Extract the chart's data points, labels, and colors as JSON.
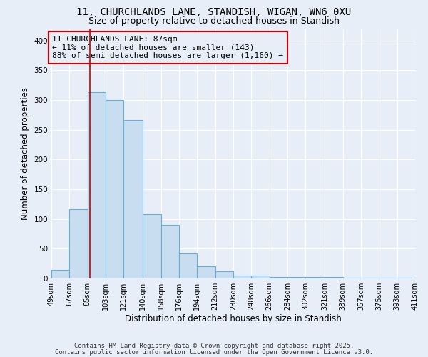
{
  "title1": "11, CHURCHLANDS LANE, STANDISH, WIGAN, WN6 0XU",
  "title2": "Size of property relative to detached houses in Standish",
  "xlabel": "Distribution of detached houses by size in Standish",
  "ylabel": "Number of detached properties",
  "bin_edges": [
    49,
    67,
    85,
    103,
    121,
    140,
    158,
    176,
    194,
    212,
    230,
    248,
    266,
    284,
    302,
    321,
    339,
    357,
    375,
    393,
    411
  ],
  "bar_heights": [
    15,
    117,
    313,
    300,
    267,
    108,
    90,
    42,
    20,
    12,
    5,
    5,
    3,
    2,
    2,
    2,
    1,
    1,
    1,
    1
  ],
  "bar_color": "#c8ddef",
  "bar_edge_color": "#6aaed6",
  "property_size": 87,
  "property_line_color": "#cc0000",
  "annotation_text": "11 CHURCHLANDS LANE: 87sqm\n← 11% of detached houses are smaller (143)\n88% of semi-detached houses are larger (1,160) →",
  "annotation_box_color": "#cc0000",
  "ylim": [
    0,
    420
  ],
  "yticks": [
    0,
    50,
    100,
    150,
    200,
    250,
    300,
    350,
    400
  ],
  "footnote1": "Contains HM Land Registry data © Crown copyright and database right 2025.",
  "footnote2": "Contains public sector information licensed under the Open Government Licence v3.0.",
  "background_color": "#e8eef8",
  "grid_color": "#ffffff",
  "title_fontsize": 10,
  "subtitle_fontsize": 9,
  "axis_label_fontsize": 8.5,
  "tick_fontsize": 7,
  "annotation_fontsize": 8,
  "footnote_fontsize": 6.5
}
